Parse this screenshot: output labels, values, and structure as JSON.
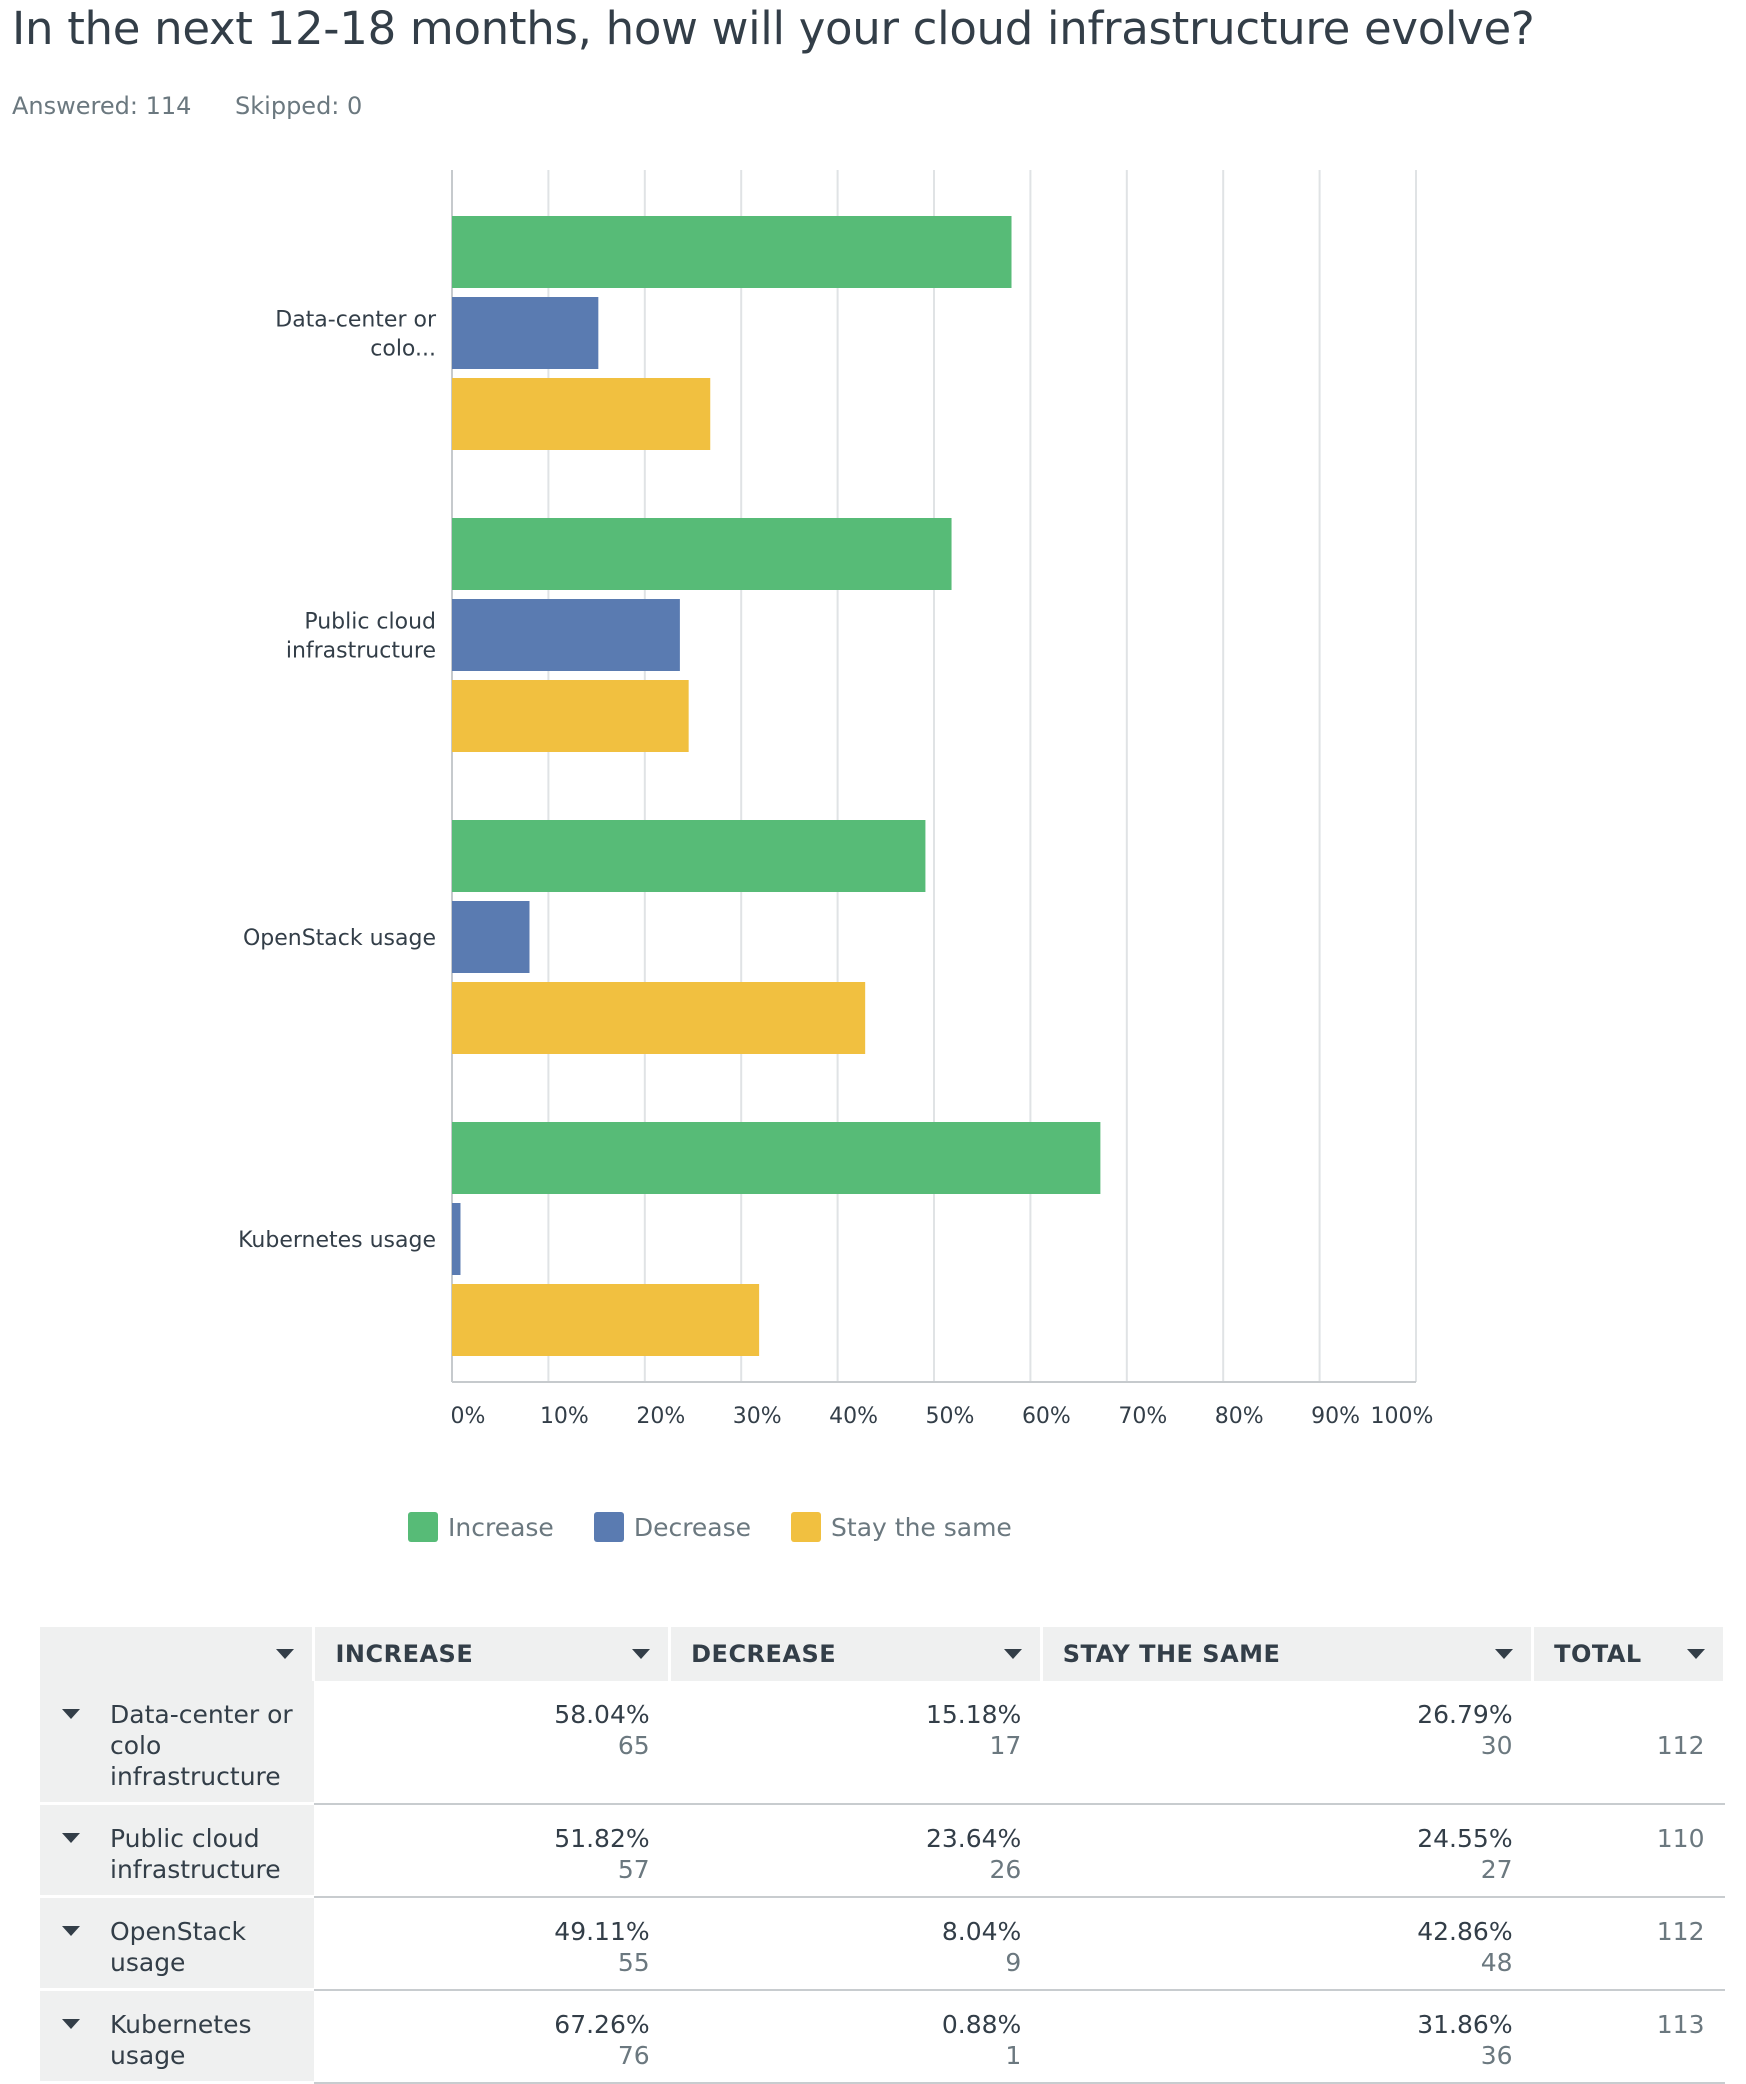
{
  "question": {
    "title": "In the next 12-18 months, how will your cloud infrastructure evolve?",
    "answered": "Answered: 114",
    "skipped": "Skipped: 0"
  },
  "colors": {
    "increase": "#57bb77",
    "decrease": "#5a7bb1",
    "stay": "#f1c040",
    "grid": "#e0e3e5",
    "axis": "#c6cacd"
  },
  "chart_data": {
    "type": "bar",
    "orientation": "horizontal",
    "categories": [
      "Data-center or colo...",
      "Public cloud infrastructure",
      "OpenStack usage",
      "Kubernetes usage"
    ],
    "series": [
      {
        "name": "Increase",
        "values": [
          58.04,
          51.82,
          49.11,
          67.26
        ]
      },
      {
        "name": "Decrease",
        "values": [
          15.18,
          23.64,
          8.04,
          0.88
        ]
      },
      {
        "name": "Stay the same",
        "values": [
          26.79,
          24.55,
          42.86,
          31.86
        ]
      }
    ],
    "xlim": [
      0,
      100
    ],
    "xticks": [
      "0%",
      "10%",
      "20%",
      "30%",
      "40%",
      "50%",
      "60%",
      "70%",
      "80%",
      "90%",
      "100%"
    ],
    "grid": true,
    "legend": "bottom"
  },
  "table": {
    "headers": [
      "INCREASE",
      "DECREASE",
      "STAY THE SAME",
      "TOTAL"
    ],
    "rows": [
      {
        "label": "Data-center or colo infrastructure",
        "increase_pct": "58.04%",
        "increase_n": "65",
        "decrease_pct": "15.18%",
        "decrease_n": "17",
        "stay_pct": "26.79%",
        "stay_n": "30",
        "total": "112"
      },
      {
        "label": "Public cloud infrastructure",
        "increase_pct": "51.82%",
        "increase_n": "57",
        "decrease_pct": "23.64%",
        "decrease_n": "26",
        "stay_pct": "24.55%",
        "stay_n": "27",
        "total": "110"
      },
      {
        "label": "OpenStack usage",
        "increase_pct": "49.11%",
        "increase_n": "55",
        "decrease_pct": "8.04%",
        "decrease_n": "9",
        "stay_pct": "42.86%",
        "stay_n": "48",
        "total": "112"
      },
      {
        "label": "Kubernetes usage",
        "increase_pct": "67.26%",
        "increase_n": "76",
        "decrease_pct": "0.88%",
        "decrease_n": "1",
        "stay_pct": "31.86%",
        "stay_n": "36",
        "total": "113"
      }
    ]
  }
}
